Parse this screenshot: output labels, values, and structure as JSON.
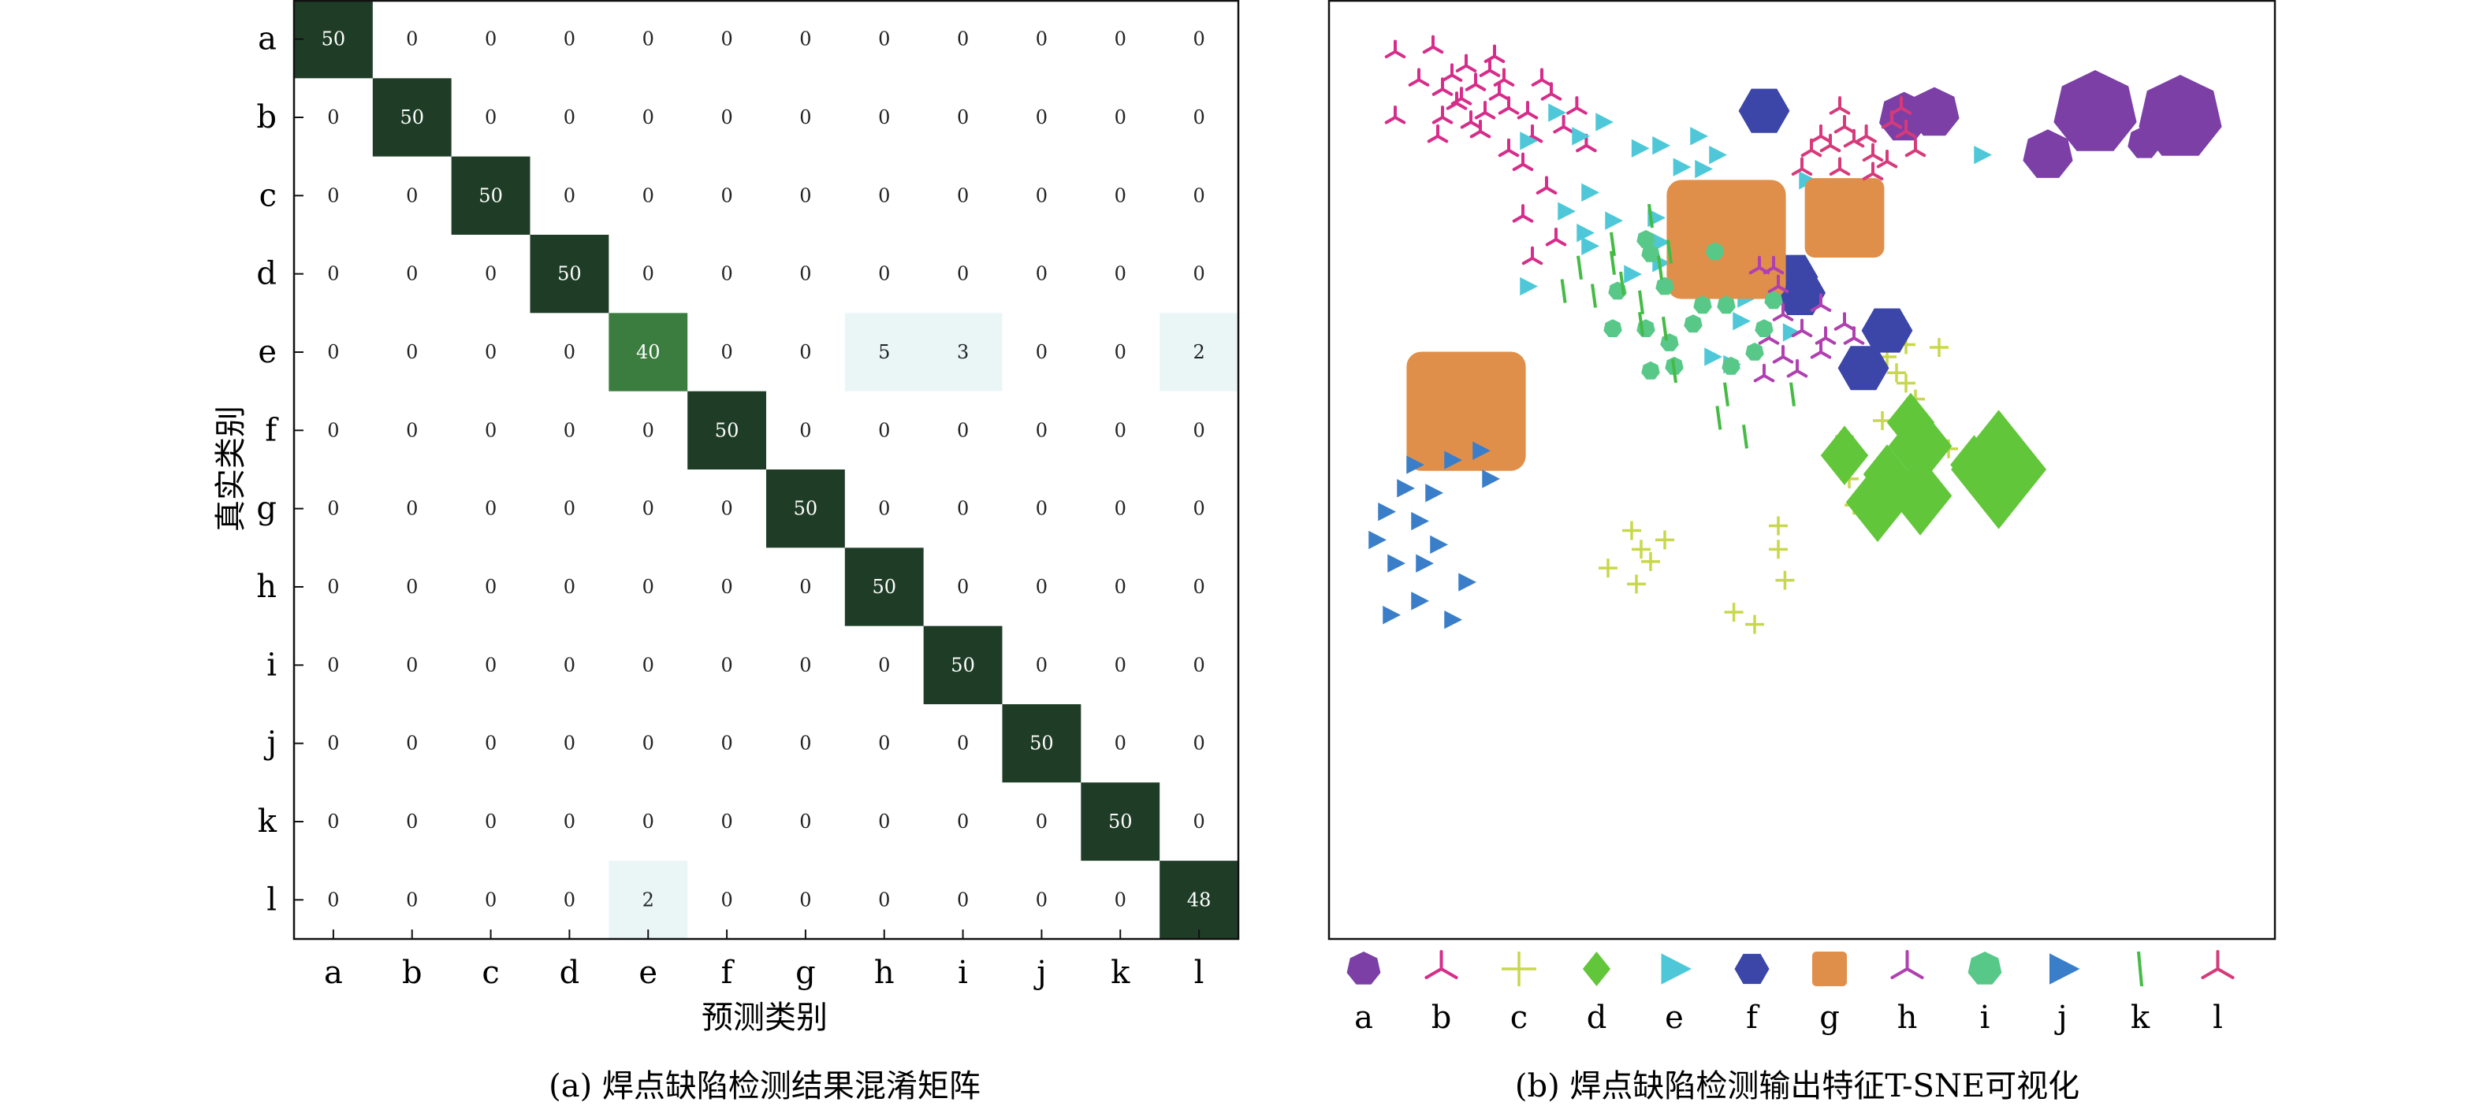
{
  "chart_data": [
    {
      "type": "heatmap",
      "title": "",
      "caption": "(a) 焊点缺陷检测结果混淆矩阵",
      "xlabel": "预测类别",
      "ylabel": "真实类别",
      "categories": [
        "a",
        "b",
        "c",
        "d",
        "e",
        "f",
        "g",
        "h",
        "i",
        "j",
        "k",
        "l"
      ],
      "matrix": [
        [
          50,
          0,
          0,
          0,
          0,
          0,
          0,
          0,
          0,
          0,
          0,
          0
        ],
        [
          0,
          50,
          0,
          0,
          0,
          0,
          0,
          0,
          0,
          0,
          0,
          0
        ],
        [
          0,
          0,
          50,
          0,
          0,
          0,
          0,
          0,
          0,
          0,
          0,
          0
        ],
        [
          0,
          0,
          0,
          50,
          0,
          0,
          0,
          0,
          0,
          0,
          0,
          0
        ],
        [
          0,
          0,
          0,
          0,
          40,
          0,
          0,
          5,
          3,
          0,
          0,
          2
        ],
        [
          0,
          0,
          0,
          0,
          0,
          50,
          0,
          0,
          0,
          0,
          0,
          0
        ],
        [
          0,
          0,
          0,
          0,
          0,
          0,
          50,
          0,
          0,
          0,
          0,
          0
        ],
        [
          0,
          0,
          0,
          0,
          0,
          0,
          0,
          50,
          0,
          0,
          0,
          0
        ],
        [
          0,
          0,
          0,
          0,
          0,
          0,
          0,
          0,
          50,
          0,
          0,
          0
        ],
        [
          0,
          0,
          0,
          0,
          0,
          0,
          0,
          0,
          0,
          50,
          0,
          0
        ],
        [
          0,
          0,
          0,
          0,
          0,
          0,
          0,
          0,
          0,
          0,
          50,
          0
        ],
        [
          0,
          0,
          0,
          0,
          2,
          0,
          0,
          0,
          0,
          0,
          0,
          48
        ]
      ],
      "colors": {
        "max": "#1f3d26",
        "high": "#3b7d3f",
        "low": "#eaf6f6",
        "zero": "#ffffff"
      }
    },
    {
      "type": "scatter",
      "title": "",
      "caption": "(b) 焊点缺陷检测输出特征T-SNE可视化",
      "xlabel": "",
      "ylabel": "",
      "axes_visible": false,
      "legend_placement": "bottom",
      "series": [
        {
          "name": "a",
          "marker": "heptagon",
          "color": "#7b3fa6",
          "points": [
            [
              810,
              120,
              5
            ],
            [
              900,
              125,
              5
            ],
            [
              760,
              165,
              3
            ],
            [
              862,
              152,
              2
            ],
            [
              640,
              120,
              3
            ],
            [
              608,
              125,
              3
            ]
          ]
        },
        {
          "name": "b",
          "marker": "trident",
          "color": "#d62d8a",
          "points": [
            [
              140,
              105
            ],
            [
              155,
              90
            ],
            [
              170,
              75
            ],
            [
              130,
              80
            ],
            [
              180,
              100
            ],
            [
              165,
              120
            ],
            [
              120,
              95
            ],
            [
              150,
              130
            ],
            [
              185,
              85
            ],
            [
              135,
              110
            ],
            [
              160,
              140
            ],
            [
              175,
              60
            ],
            [
              145,
              70
            ],
            [
              120,
              125
            ],
            [
              190,
              115
            ],
            [
              210,
              120
            ],
            [
              235,
              100
            ],
            [
              248,
              135
            ],
            [
              215,
              145
            ],
            [
              262,
              115
            ],
            [
              225,
              85
            ],
            [
              272,
              155
            ],
            [
              115,
              145
            ],
            [
              70,
              125
            ],
            [
              95,
              85
            ],
            [
              70,
              55
            ],
            [
              110,
              50
            ],
            [
              230,
              200
            ],
            [
              205,
              175
            ],
            [
              190,
              160
            ],
            [
              205,
              230
            ],
            [
              240,
              255
            ],
            [
              215,
              275
            ]
          ]
        },
        {
          "name": "c",
          "marker": "plus",
          "color": "#c8d84a",
          "points": [
            [
              575,
              355
            ],
            [
              610,
              367
            ],
            [
              590,
              380
            ],
            [
              645,
              370
            ],
            [
              600,
              397
            ],
            [
              610,
              408
            ],
            [
              620,
              425
            ],
            [
              585,
              448
            ],
            [
              545,
              465
            ],
            [
              545,
              488
            ],
            [
              550,
              510
            ],
            [
              555,
              538
            ],
            [
              620,
              472
            ],
            [
              655,
              478
            ],
            [
              320,
              565
            ],
            [
              330,
              585
            ],
            [
              340,
              598
            ],
            [
              355,
              575
            ],
            [
              295,
              605
            ],
            [
              325,
              622
            ],
            [
              475,
              560
            ],
            [
              475,
              585
            ],
            [
              482,
              618
            ],
            [
              428,
              652
            ],
            [
              450,
              665
            ]
          ]
        },
        {
          "name": "d",
          "marker": "diamond",
          "color": "#62c63a",
          "points": [
            [
              545,
              485,
              3
            ],
            [
              615,
              450,
              3
            ],
            [
              625,
              475,
              4
            ],
            [
              590,
              505,
              3
            ],
            [
              580,
              535,
              4
            ],
            [
              625,
              528,
              4
            ],
            [
              682,
              495,
              3
            ],
            [
              708,
              500,
              6
            ]
          ]
        },
        {
          "name": "e",
          "marker": "triangle",
          "color": "#4ec8d8",
          "points": [
            [
              210,
              150
            ],
            [
              240,
              120
            ],
            [
              265,
              145
            ],
            [
              290,
              130
            ],
            [
              275,
              205
            ],
            [
              250,
              225
            ],
            [
              270,
              248
            ],
            [
              300,
              235
            ],
            [
              210,
              305
            ],
            [
              275,
              262
            ],
            [
              320,
              292
            ],
            [
              350,
              258
            ],
            [
              345,
              232
            ],
            [
              375,
              248
            ],
            [
              350,
              280
            ],
            [
              380,
              282
            ],
            [
              418,
              230
            ],
            [
              435,
              272
            ],
            [
              455,
              302
            ],
            [
              470,
              218
            ],
            [
              505,
              192
            ],
            [
              425,
              388
            ],
            [
              435,
              342
            ],
            [
              440,
              318
            ],
            [
              488,
              354
            ],
            [
              405,
              380
            ],
            [
              328,
              158
            ],
            [
              350,
              155
            ],
            [
              390,
              145
            ],
            [
              395,
              180
            ],
            [
              410,
              165
            ],
            [
              372,
              178
            ],
            [
              690,
              165
            ]
          ]
        },
        {
          "name": "f",
          "marker": "hexagon",
          "color": "#3c46a8",
          "points": [
            [
              460,
              118,
              3
            ],
            [
              590,
              352,
              3
            ],
            [
              565,
              392,
              3
            ],
            [
              490,
              295,
              3
            ],
            [
              498,
              312,
              3
            ]
          ]
        },
        {
          "name": "g",
          "marker": "square",
          "color": "#e08f4a",
          "points": [
            [
              420,
              255,
              6
            ],
            [
              545,
              232,
              4
            ],
            [
              145,
              438,
              6
            ]
          ]
        },
        {
          "name": "h",
          "marker": "trident",
          "color": "#b040b0",
          "points": [
            [
              520,
              375
            ],
            [
              545,
              345
            ],
            [
              470,
              285
            ],
            [
              455,
              285
            ],
            [
              475,
              305
            ],
            [
              480,
              335
            ],
            [
              555,
              360
            ],
            [
              525,
              360
            ],
            [
              500,
              352
            ],
            [
              480,
              380
            ],
            [
              460,
              400
            ],
            [
              495,
              395
            ],
            [
              465,
              360
            ],
            [
              520,
              325
            ]
          ]
        },
        {
          "name": "i",
          "marker": "heptagon",
          "color": "#58c888",
          "points": [
            [
              340,
              270
            ],
            [
              305,
              310
            ],
            [
              355,
              305
            ],
            [
              395,
              325
            ],
            [
              385,
              345
            ],
            [
              420,
              325
            ],
            [
              460,
              350
            ],
            [
              450,
              375
            ],
            [
              425,
              390
            ],
            [
              365,
              390
            ],
            [
              335,
              350
            ],
            [
              360,
              365
            ],
            [
              340,
              395
            ],
            [
              300,
              350
            ],
            [
              335,
              255
            ],
            [
              408,
              268
            ],
            [
              470,
              320
            ]
          ]
        },
        {
          "name": "j",
          "marker": "triangle",
          "color": "#3a7ec9",
          "points": [
            [
              50,
              575
            ],
            [
              60,
              545
            ],
            [
              80,
              520
            ],
            [
              110,
              525
            ],
            [
              95,
              555
            ],
            [
              70,
              600
            ],
            [
              100,
              600
            ],
            [
              115,
              580
            ],
            [
              145,
              620
            ],
            [
              65,
              655
            ],
            [
              95,
              640
            ],
            [
              130,
              660
            ],
            [
              90,
              495
            ],
            [
              130,
              490
            ],
            [
              160,
              480
            ],
            [
              170,
              510
            ]
          ]
        },
        {
          "name": "k",
          "marker": "dash",
          "color": "#44bb44",
          "points": [
            [
              248,
              310
            ],
            [
              265,
              285
            ],
            [
              280,
              315
            ],
            [
              300,
              280
            ],
            [
              310,
              302
            ],
            [
              330,
              322
            ],
            [
              350,
              285
            ],
            [
              360,
              268
            ],
            [
              340,
              230
            ],
            [
              330,
              345
            ],
            [
              355,
              350
            ],
            [
              420,
              420
            ],
            [
              412,
              445
            ],
            [
              440,
              465
            ],
            [
              490,
              420
            ],
            [
              365,
              395
            ],
            [
              300,
              260
            ]
          ]
        },
        {
          "name": "l",
          "marker": "trident",
          "color": "#d63a7a",
          "points": [
            [
              530,
              155
            ],
            [
              520,
              145
            ],
            [
              510,
              160
            ],
            [
              545,
              135
            ],
            [
              555,
              150
            ],
            [
              575,
              165
            ],
            [
              568,
              145
            ],
            [
              595,
              130
            ],
            [
              590,
              172
            ],
            [
              610,
              140
            ],
            [
              620,
              160
            ],
            [
              500,
              180
            ],
            [
              540,
              180
            ],
            [
              575,
              185
            ],
            [
              605,
              115
            ],
            [
              540,
              115
            ]
          ]
        }
      ],
      "cluster_note": ""
    }
  ]
}
